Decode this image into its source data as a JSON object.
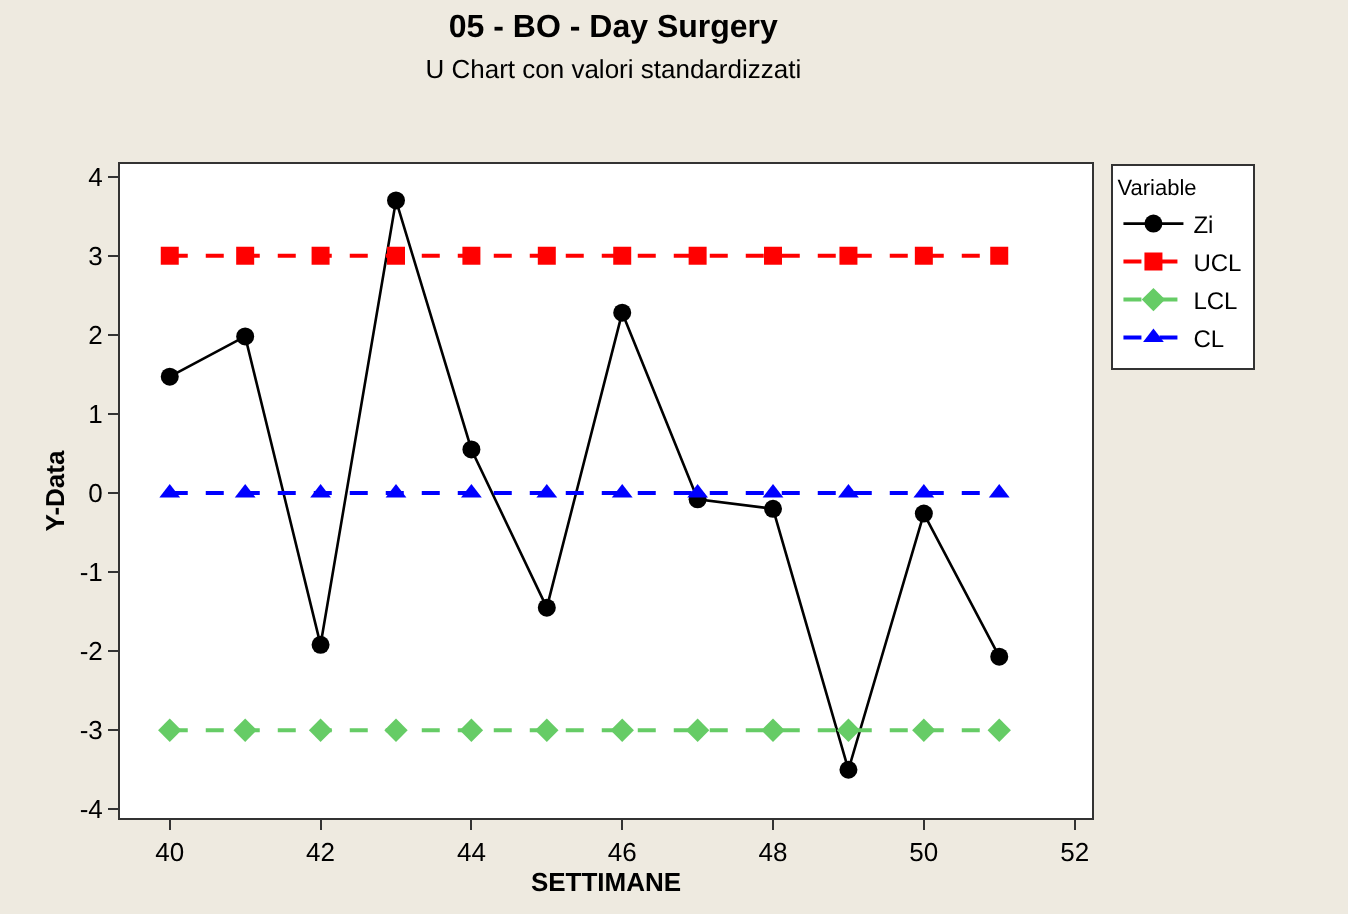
{
  "chart_data": {
    "type": "line",
    "title": "05 - BO - Day Surgery",
    "subtitle": "U Chart con valori standardizzati",
    "xlabel": "SETTIMANE",
    "ylabel": "Y-Data",
    "legend_title": "Variable",
    "legend": "right",
    "x": [
      40,
      41,
      42,
      43,
      44,
      45,
      46,
      47,
      48,
      49,
      50,
      51
    ],
    "xlim": [
      39.34,
      52.23
    ],
    "xticks": [
      40,
      42,
      44,
      46,
      48,
      50,
      52
    ],
    "ylim": [
      -4.11,
      4.16
    ],
    "yticks": [
      -4,
      -3,
      -2,
      -1,
      0,
      1,
      2,
      3,
      4
    ],
    "series": [
      {
        "name": "Zi",
        "color": "#000000",
        "marker": "circle",
        "line_style": "solid",
        "values": [
          1.47,
          1.98,
          -1.92,
          3.7,
          0.55,
          -1.45,
          2.28,
          -0.08,
          -0.2,
          -3.5,
          -0.26,
          -2.07
        ]
      },
      {
        "name": "UCL",
        "color": "#ff0000",
        "marker": "square",
        "line_style": "dashed",
        "values": [
          3,
          3,
          3,
          3,
          3,
          3,
          3,
          3,
          3,
          3,
          3,
          3
        ]
      },
      {
        "name": "LCL",
        "color": "#66cc66",
        "marker": "diamond",
        "line_style": "dashed",
        "values": [
          -3,
          -3,
          -3,
          -3,
          -3,
          -3,
          -3,
          -3,
          -3,
          -3,
          -3,
          -3
        ]
      },
      {
        "name": "CL",
        "color": "#0000ff",
        "marker": "triangle",
        "line_style": "dashed",
        "values": [
          0,
          0,
          0,
          0,
          0,
          0,
          0,
          0,
          0,
          0,
          0,
          0
        ]
      }
    ]
  }
}
